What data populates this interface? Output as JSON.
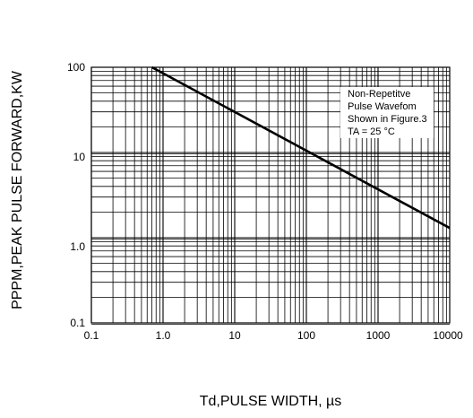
{
  "chart_data": {
    "type": "line",
    "x_scale": "log",
    "y_scale": "log",
    "xlim": [
      0.1,
      10000
    ],
    "ylim": [
      0.1,
      100
    ],
    "grid": true,
    "x_tick_labels": [
      "0.1",
      "1.0",
      "10",
      "100",
      "1000",
      "10000"
    ],
    "y_tick_labels": [
      "0.1",
      "1.0",
      "10",
      "100"
    ],
    "xlabel": "Td,PULSE WIDTH, µs",
    "ylabel": "PPPM,PEAK PULSE FORWARD,KW",
    "legend_lines": [
      "Non-Repetitve",
      "Pulse Wavefom",
      "Shown in Figure.3",
      "TA = 25 °C"
    ],
    "legend_placement": "top-right",
    "series": [
      {
        "x": [
          0.7,
          10000
        ],
        "y": [
          100,
          1.3
        ]
      }
    ]
  }
}
